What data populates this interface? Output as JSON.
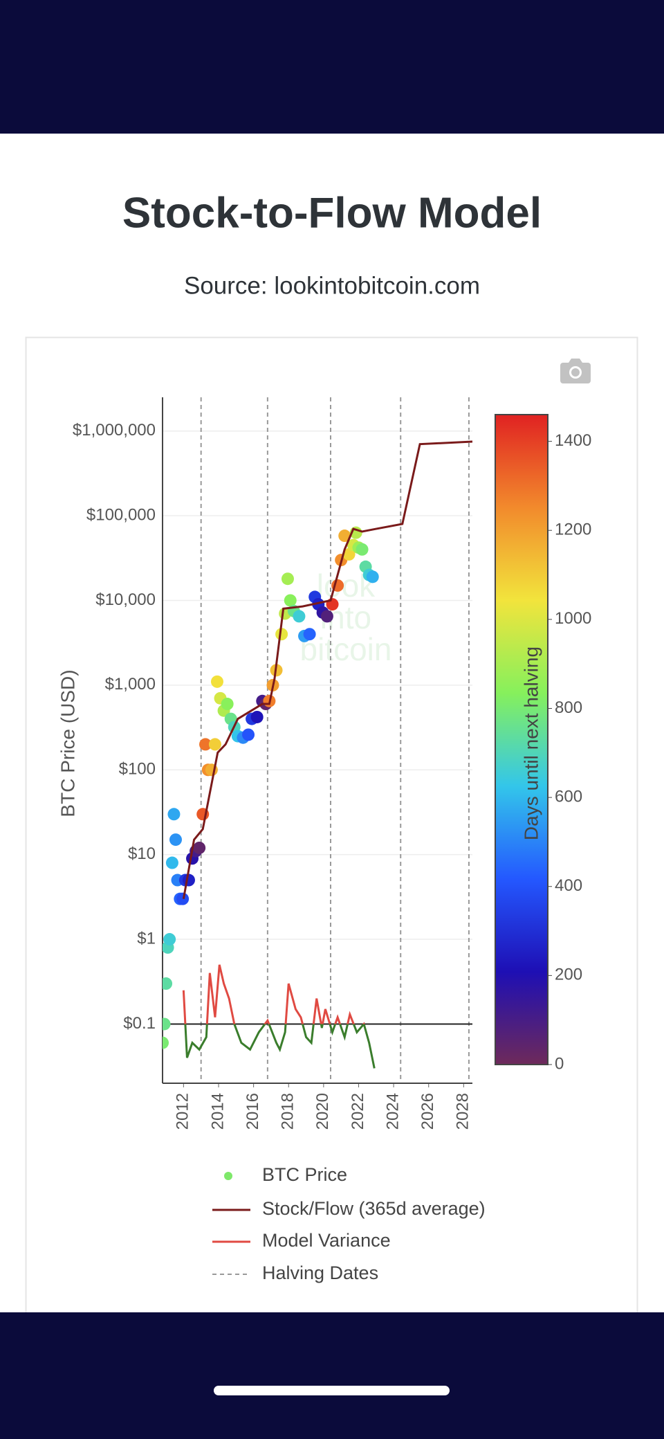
{
  "chart_data": {
    "type": "scatter",
    "title": "Stock-to-Flow Model",
    "subtitle": "Source: lookintobitcoin.com",
    "y_label": "BTC Price (USD)",
    "watermark": [
      "look",
      "into",
      "bitcoin"
    ],
    "log_y": true,
    "grid": true,
    "legend": "bottom",
    "xlim": [
      2010.8,
      2028.5
    ],
    "ylim": [
      0.02,
      2500000
    ],
    "xticks": [
      2012,
      2014,
      2016,
      2018,
      2020,
      2022,
      2024,
      2026,
      2028
    ],
    "yticks": [
      {
        "value": 0.1,
        "label": "$0.1"
      },
      {
        "value": 1,
        "label": "$1"
      },
      {
        "value": 10,
        "label": "$10"
      },
      {
        "value": 100,
        "label": "$100"
      },
      {
        "value": 1000,
        "label": "$1,000"
      },
      {
        "value": 10000,
        "label": "$10,000"
      },
      {
        "value": 100000,
        "label": "$100,000"
      },
      {
        "value": 1000000,
        "label": "$1,000,000"
      }
    ],
    "reference_line": 0.1,
    "colorbar": {
      "label": "Days until next halving",
      "clim": [
        0,
        1460
      ],
      "ticks": [
        0,
        200,
        400,
        600,
        800,
        1000,
        1200,
        1400
      ],
      "colorscale": [
        "#6e2a5a",
        "#1e0fb4",
        "#2458ff",
        "#33c6ea",
        "#86f05c",
        "#f2e43c",
        "#f28a2c",
        "#e02222"
      ]
    },
    "series": [
      {
        "name": "BTC Price",
        "type": "scatter",
        "color": "#7ee86a",
        "x": [
          2010.8,
          2010.9,
          2011.0,
          2011.1,
          2011.2,
          2011.35,
          2011.45,
          2011.55,
          2011.65,
          2011.8,
          2011.95,
          2012.1,
          2012.3,
          2012.5,
          2012.7,
          2012.9,
          2013.1,
          2013.25,
          2013.4,
          2013.6,
          2013.8,
          2013.92,
          2014.1,
          2014.3,
          2014.5,
          2014.7,
          2014.9,
          2015.1,
          2015.4,
          2015.7,
          2015.9,
          2016.2,
          2016.5,
          2016.7,
          2016.9,
          2017.1,
          2017.3,
          2017.6,
          2017.8,
          2017.95,
          2018.1,
          2018.3,
          2018.6,
          2018.9,
          2019.2,
          2019.5,
          2019.7,
          2019.95,
          2020.2,
          2020.5,
          2020.8,
          2021.0,
          2021.2,
          2021.45,
          2021.7,
          2021.85,
          2022.0,
          2022.2,
          2022.4,
          2022.6,
          2022.8
        ],
        "values": [
          0.06,
          0.1,
          0.3,
          0.8,
          1,
          8,
          30,
          15,
          5,
          3,
          3,
          5,
          5,
          9,
          11,
          12,
          30,
          200,
          100,
          100,
          200,
          1100,
          700,
          500,
          600,
          400,
          320,
          250,
          240,
          260,
          400,
          420,
          650,
          600,
          650,
          1000,
          1500,
          4000,
          7000,
          18000,
          10000,
          7500,
          6500,
          3800,
          4000,
          11000,
          9000,
          7200,
          6500,
          9000,
          15000,
          30000,
          58000,
          35000,
          45000,
          63000,
          42000,
          40000,
          25000,
          20000,
          19000
        ],
        "color_values": [
          803,
          767,
          730,
          694,
          657,
          602,
          566,
          529,
          493,
          438,
          383,
          329,
          256,
          183,
          110,
          37,
          1351,
          1296,
          1241,
          1168,
          1095,
          1051,
          986,
          913,
          840,
          767,
          694,
          621,
          511,
          402,
          329,
          219,
          110,
          37,
          1278,
          1205,
          1132,
          1022,
          949,
          894,
          840,
          767,
          657,
          548,
          438,
          329,
          256,
          164,
          73,
          1424,
          1314,
          1241,
          1168,
          1077,
          986,
          931,
          876,
          803,
          730,
          657,
          584
        ]
      },
      {
        "name": "Stock/Flow (365d average)",
        "type": "line",
        "color": "#7a1a1a",
        "x": [
          2012.0,
          2012.6,
          2013.1,
          2013.95,
          2014.4,
          2015.1,
          2016.5,
          2016.9,
          2017.2,
          2017.7,
          2018.8,
          2020.4,
          2021.2,
          2021.7,
          2022.2,
          2023.0,
          2024.5,
          2025.5,
          2028.5
        ],
        "values": [
          3,
          15,
          20,
          160,
          200,
          400,
          600,
          600,
          1200,
          8000,
          8500,
          10000,
          40000,
          70000,
          65000,
          70000,
          80000,
          700000,
          750000
        ]
      },
      {
        "name": "Model Variance",
        "type": "variance",
        "color": "#e04a42",
        "color_below": "#3a7d2c",
        "x": [
          2012.0,
          2012.2,
          2012.5,
          2012.9,
          2013.3,
          2013.5,
          2013.8,
          2014.05,
          2014.3,
          2014.6,
          2014.9,
          2015.3,
          2015.8,
          2016.3,
          2016.8,
          2017.3,
          2017.5,
          2017.8,
          2018.0,
          2018.4,
          2018.7,
          2019.0,
          2019.3,
          2019.6,
          2019.9,
          2020.1,
          2020.5,
          2020.8,
          2021.2,
          2021.5,
          2021.9,
          2022.3,
          2022.6,
          2022.9
        ],
        "values": [
          0.25,
          0.04,
          0.06,
          0.05,
          0.07,
          0.4,
          0.12,
          0.5,
          0.3,
          0.2,
          0.1,
          0.06,
          0.05,
          0.08,
          0.11,
          0.06,
          0.05,
          0.08,
          0.3,
          0.15,
          0.12,
          0.07,
          0.06,
          0.2,
          0.09,
          0.15,
          0.08,
          0.12,
          0.07,
          0.13,
          0.08,
          0.1,
          0.06,
          0.03
        ]
      }
    ],
    "halving_dates": {
      "name": "Halving Dates",
      "color": "#999999",
      "x": [
        2013.0,
        2016.8,
        2020.4,
        2024.4,
        2028.3
      ]
    }
  }
}
